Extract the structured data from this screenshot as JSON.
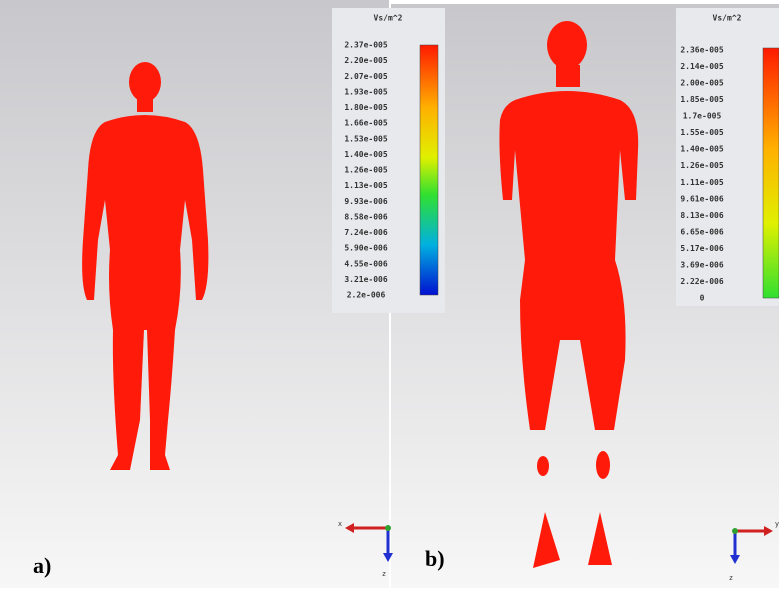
{
  "panels": [
    {
      "label": "a)",
      "unit": "Vs/m^2",
      "scale": [
        "2.37e-005",
        "2.20e-005",
        "2.07e-005",
        "1.93e-005",
        "1.80e-005",
        "1.66e-005",
        "1.53e-005",
        "1.40e-005",
        "1.26e-005",
        "1.13e-005",
        "9.93e-006",
        "8.58e-006",
        "7.24e-006",
        "5.90e-006",
        "4.55e-006",
        "3.21e-006",
        "2.2e-006"
      ],
      "axes": [
        "x",
        "z"
      ]
    },
    {
      "label": "b)",
      "unit": "Vs/m^2",
      "scale": [
        "2.36e-005",
        "2.14e-005",
        "2.00e-005",
        "1.85e-005",
        "1.7e-005",
        "1.55e-005",
        "1.40e-005",
        "1.26e-005",
        "1.11e-005",
        "9.61e-006",
        "8.13e-006",
        "6.65e-006",
        "5.17e-006",
        "3.69e-006",
        "2.22e-006",
        "0"
      ],
      "axes": [
        "y",
        "z"
      ]
    }
  ]
}
